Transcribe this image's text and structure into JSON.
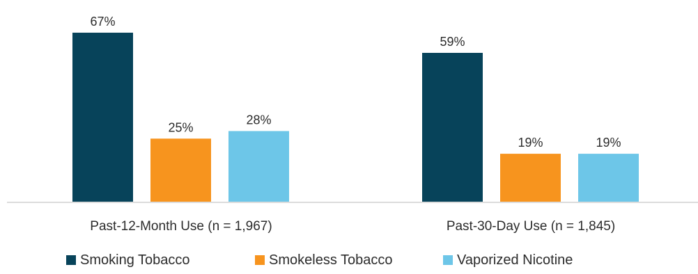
{
  "chart_data": {
    "type": "bar",
    "title": "",
    "xlabel": "",
    "ylabel": "",
    "categories": [
      "Past-12-Month Use (n = 1,967)",
      "Past-30-Day Use (n = 1,845)"
    ],
    "series": [
      {
        "name": "Smoking Tobacco",
        "color": "#07435a",
        "values": [
          67,
          59
        ],
        "labels": [
          "67%",
          "59%"
        ]
      },
      {
        "name": "Smokeless Tobacco",
        "color": "#f7941e",
        "values": [
          25,
          19
        ],
        "labels": [
          "25%",
          "19%"
        ]
      },
      {
        "name": "Vaporized Nicotine",
        "color": "#6dc6e8",
        "values": [
          28,
          19
        ],
        "labels": [
          "28%",
          "19%"
        ]
      }
    ],
    "ylim": [
      0,
      67
    ],
    "grid": false,
    "legend_position": "bottom"
  }
}
